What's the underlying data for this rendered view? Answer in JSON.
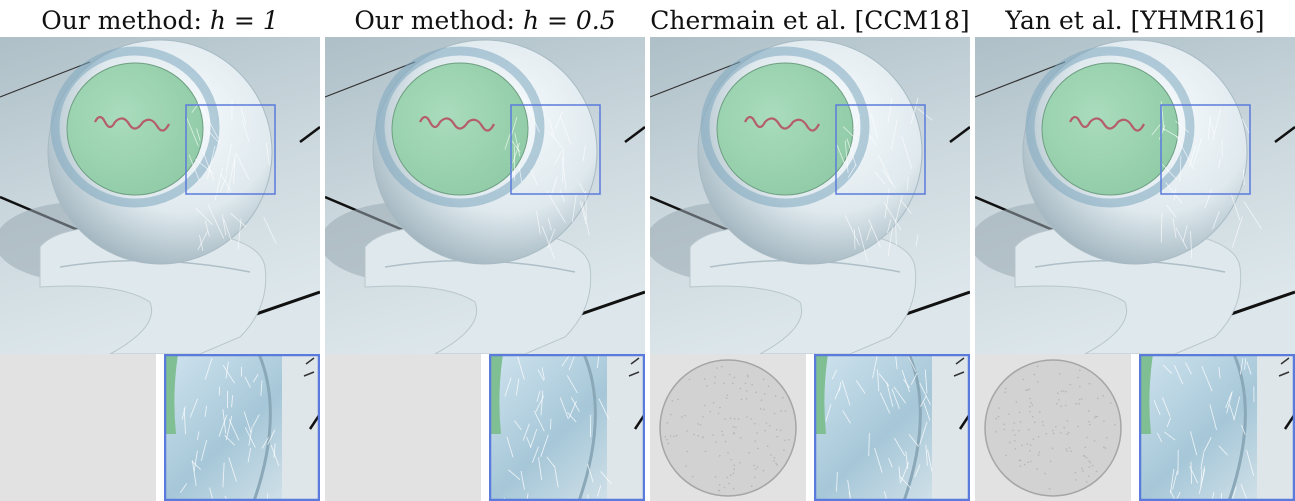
{
  "figure": {
    "columns": [
      {
        "id": "ours-h1",
        "title": "Our method: ",
        "title_var": "h = 1",
        "variance_pattern": "flat"
      },
      {
        "id": "ours-h05",
        "title": "Our method: ",
        "title_var": "h = 0.5",
        "variance_pattern": "flat"
      },
      {
        "id": "chermain",
        "title": "Chermain et al. [CCM18]",
        "title_var": "",
        "variance_pattern": "disc"
      },
      {
        "id": "yan",
        "title": "Yan et al. [YHMR16]",
        "title_var": "",
        "variance_pattern": "disc"
      }
    ],
    "colors": {
      "inset_box": "#5b7bdc",
      "ground": "#c9d6dc",
      "sphere_core": "#8fcaa5",
      "sphere_shell": "#dfe9ee",
      "variance_bg": "#e2e2e2"
    }
  }
}
